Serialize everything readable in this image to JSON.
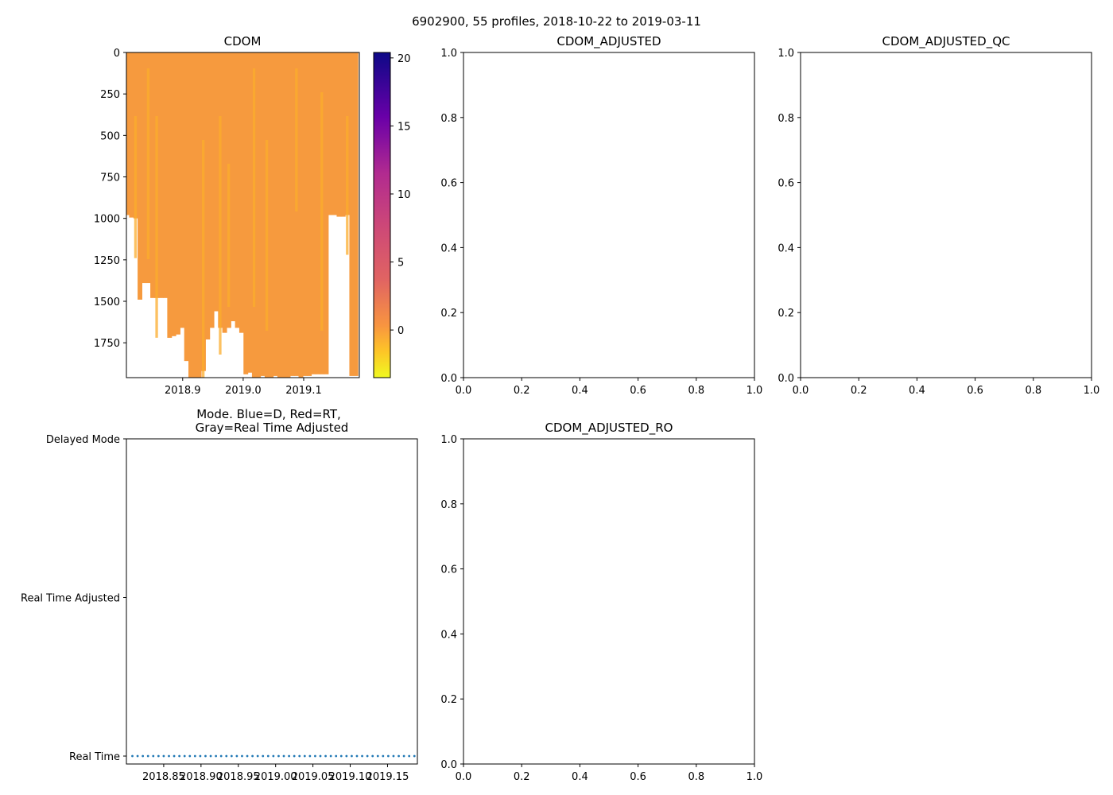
{
  "figure": {
    "suptitle": "6902900, 55 profiles, 2018-10-22 to 2019-03-11",
    "n_profiles": 55,
    "date_start": "2018-10-22",
    "date_end": "2019-03-11"
  },
  "colors": {
    "field_main": "#f69a3e",
    "field_light": "#fbac2c",
    "mode_line": "#1f77b4",
    "axes": "#000000",
    "background": "#ffffff"
  },
  "chart_data": [
    {
      "id": "cdom",
      "type": "heatmap",
      "title": "CDOM",
      "x_range": [
        2018.807,
        2019.192
      ],
      "y_range": [
        1960,
        0
      ],
      "y_inverted": true,
      "x_ticks": [
        2018.9,
        2019.0,
        2019.1
      ],
      "x_tick_labels": [
        "2018.9",
        "2019.0",
        "2019.1"
      ],
      "y_ticks": [
        0,
        250,
        500,
        750,
        1000,
        1250,
        1500,
        1750
      ],
      "y_tick_labels": [
        "0",
        "250",
        "500",
        "750",
        "1000",
        "1250",
        "1500",
        "1750"
      ],
      "profile_times": [
        2018.808,
        2018.815,
        2018.822,
        2018.829,
        2018.836,
        2018.843,
        2018.85,
        2018.857,
        2018.864,
        2018.871,
        2018.878,
        2018.885,
        2018.892,
        2018.899,
        2018.906,
        2018.913,
        2018.92,
        2018.927,
        2018.934,
        2018.941,
        2018.948,
        2018.955,
        2018.962,
        2018.969,
        2018.976,
        2018.983,
        2018.99,
        2018.997,
        2019.004,
        2019.011,
        2019.018,
        2019.025,
        2019.032,
        2019.039,
        2019.046,
        2019.053,
        2019.06,
        2019.067,
        2019.074,
        2019.081,
        2019.088,
        2019.095,
        2019.102,
        2019.109,
        2019.116,
        2019.123,
        2019.13,
        2019.137,
        2019.144,
        2019.151,
        2019.158,
        2019.165,
        2019.172,
        2019.179,
        2019.186
      ],
      "profile_max_depth": [
        980,
        995,
        1000,
        1490,
        1390,
        1390,
        1480,
        1480,
        1480,
        1480,
        1720,
        1710,
        1700,
        1660,
        1860,
        1960,
        1960,
        1960,
        1920,
        1730,
        1660,
        1560,
        1660,
        1690,
        1660,
        1620,
        1660,
        1690,
        1940,
        1930,
        1960,
        1960,
        1950,
        1960,
        1960,
        1950,
        1960,
        1960,
        1960,
        1950,
        1950,
        1960,
        1950,
        1950,
        1940,
        1940,
        1940,
        1940,
        980,
        980,
        990,
        990,
        980,
        1950,
        1950
      ],
      "typical_value": 1.0,
      "colorbar": {
        "range": [
          -3.5,
          20.4
        ],
        "ticks": [
          0,
          5,
          10,
          15,
          20
        ],
        "tick_labels": [
          "0",
          "5",
          "10",
          "15",
          "20"
        ],
        "colormap": "plasma_r"
      }
    },
    {
      "id": "cdom-adjusted",
      "type": "line",
      "title": "CDOM_ADJUSTED",
      "series": [],
      "xlim": [
        0.0,
        1.0
      ],
      "ylim": [
        0.0,
        1.0
      ],
      "x_ticks": [
        0.0,
        0.2,
        0.4,
        0.6,
        0.8,
        1.0
      ],
      "x_tick_labels": [
        "0.0",
        "0.2",
        "0.4",
        "0.6",
        "0.8",
        "1.0"
      ],
      "y_ticks": [
        0.0,
        0.2,
        0.4,
        0.6,
        0.8,
        1.0
      ],
      "y_tick_labels": [
        "0.0",
        "0.2",
        "0.4",
        "0.6",
        "0.8",
        "1.0"
      ]
    },
    {
      "id": "cdom-adjusted-qc",
      "type": "line",
      "title": "CDOM_ADJUSTED_QC",
      "series": [],
      "xlim": [
        0.0,
        1.0
      ],
      "ylim": [
        0.0,
        1.0
      ],
      "x_ticks": [
        0.0,
        0.2,
        0.4,
        0.6,
        0.8,
        1.0
      ],
      "x_tick_labels": [
        "0.0",
        "0.2",
        "0.4",
        "0.6",
        "0.8",
        "1.0"
      ],
      "y_ticks": [
        0.0,
        0.2,
        0.4,
        0.6,
        0.8,
        1.0
      ],
      "y_tick_labels": [
        "0.0",
        "0.2",
        "0.4",
        "0.6",
        "0.8",
        "1.0"
      ]
    },
    {
      "id": "mode",
      "type": "scatter",
      "title": [
        "Mode. Blue=D, Red=RT,",
        "Gray=Real Time Adjusted"
      ],
      "xlim": [
        2018.8,
        2019.19
      ],
      "ylim": [
        -0.05,
        2.0
      ],
      "x_ticks": [
        2018.85,
        2018.9,
        2018.95,
        2019.0,
        2019.05,
        2019.1,
        2019.15
      ],
      "x_tick_labels": [
        "2018.85",
        "2018.90",
        "2018.95",
        "2019.00",
        "2019.05",
        "2019.10",
        "2019.15"
      ],
      "y_ticks": [
        0,
        1,
        2
      ],
      "y_tick_labels": [
        "Real Time",
        "Real Time Adjusted",
        "Delayed Mode"
      ],
      "series": [
        {
          "name": "mode",
          "value": 0,
          "x_start": 2018.808,
          "x_step": 0.007,
          "count": 55
        }
      ]
    },
    {
      "id": "cdom-adjusted-ro",
      "type": "line",
      "title": "CDOM_ADJUSTED_RO",
      "series": [],
      "xlim": [
        0.0,
        1.0
      ],
      "ylim": [
        0.0,
        1.0
      ],
      "x_ticks": [
        0.0,
        0.2,
        0.4,
        0.6,
        0.8,
        1.0
      ],
      "x_tick_labels": [
        "0.0",
        "0.2",
        "0.4",
        "0.6",
        "0.8",
        "1.0"
      ],
      "y_ticks": [
        0.0,
        0.2,
        0.4,
        0.6,
        0.8,
        1.0
      ],
      "y_tick_labels": [
        "0.0",
        "0.2",
        "0.4",
        "0.6",
        "0.8",
        "1.0"
      ]
    }
  ]
}
